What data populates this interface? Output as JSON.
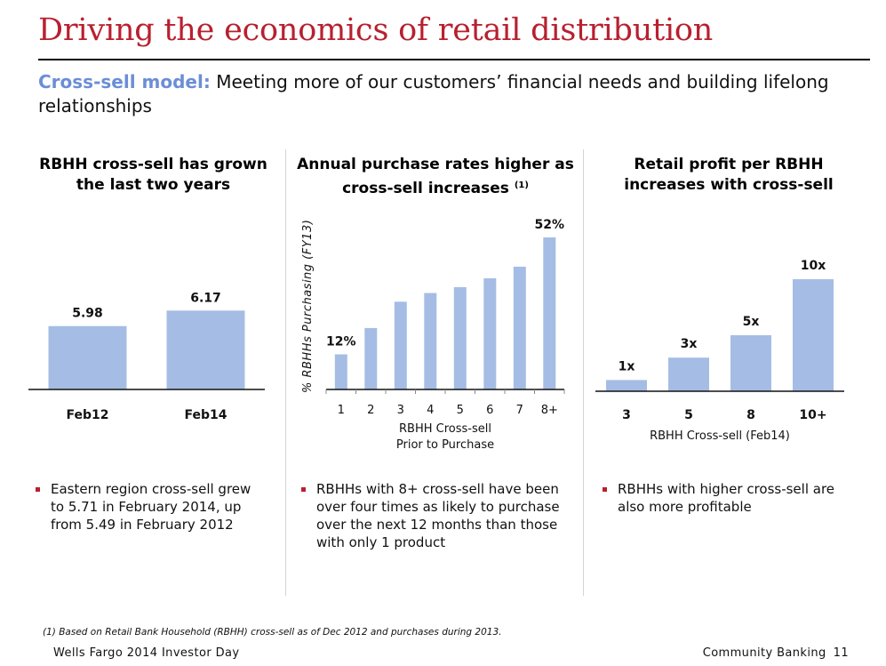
{
  "header": {
    "title": "Driving the economics of retail distribution",
    "subtitle_lead": "Cross-sell model:",
    "subtitle_text": "Meeting more of our customers’ financial needs and building lifelong relationships"
  },
  "panels": [
    {
      "heading": "RBHH cross-sell has grown the last two years",
      "bullet": "Eastern region cross-sell grew to 5.71 in February 2014, up from 5.49 in February 2012"
    },
    {
      "heading": "Annual purchase rates higher as cross-sell increases",
      "heading_note": "(1)",
      "bullet": "RBHHs with 8+ cross-sell have been over four times as likely to purchase over the next 12 months than those with only 1 product"
    },
    {
      "heading": "Retail profit per RBHH increases with cross-sell",
      "bullet": "RBHHs with higher cross-sell are also more profitable"
    }
  ],
  "colors": {
    "bar": "#a5bde4",
    "accent": "#b8202f",
    "subtitle_lead": "#6b8ed6"
  },
  "chart_data": [
    {
      "type": "bar",
      "categories": [
        "Feb12",
        "Feb14"
      ],
      "values": [
        5.98,
        6.17
      ],
      "labels": [
        "5.98",
        "6.17"
      ],
      "title": "RBHH cross-sell has grown the last two years",
      "xlabel": "",
      "ylabel": "",
      "ylim": [
        5.2,
        6.25
      ],
      "grid": false
    },
    {
      "type": "bar",
      "categories": [
        "1",
        "2",
        "3",
        "4",
        "5",
        "6",
        "7",
        "8+"
      ],
      "values": [
        12,
        21,
        30,
        33,
        35,
        38,
        42,
        52
      ],
      "labels": [
        "12%",
        "",
        "",
        "",
        "",
        "",
        "",
        "52%"
      ],
      "title": "Annual purchase rates higher as cross-sell increases",
      "xlabel": "RBHH Cross-sell Prior to Purchase",
      "xlabel_lines": [
        "RBHH Cross-sell",
        "Prior to Purchase"
      ],
      "ylabel": "% RBHHs Purchasing (FY13)",
      "ylim": [
        0,
        52
      ],
      "grid": false
    },
    {
      "type": "bar",
      "categories": [
        "3",
        "5",
        "8",
        "10+"
      ],
      "values": [
        1,
        3,
        5,
        10
      ],
      "labels": [
        "1x",
        "3x",
        "5x",
        "10x"
      ],
      "title": "Retail profit per RBHH increases with cross-sell",
      "xlabel": "RBHH Cross-sell (Feb14)",
      "ylabel": "",
      "ylim": [
        0,
        10
      ],
      "grid": false
    }
  ],
  "footnote": "(1)  Based on Retail Bank Household (RBHH) cross-sell as of Dec 2012 and purchases during 2013.",
  "footer": {
    "left": "Wells Fargo 2014 Investor Day",
    "section": "Community Banking",
    "page": "11"
  }
}
